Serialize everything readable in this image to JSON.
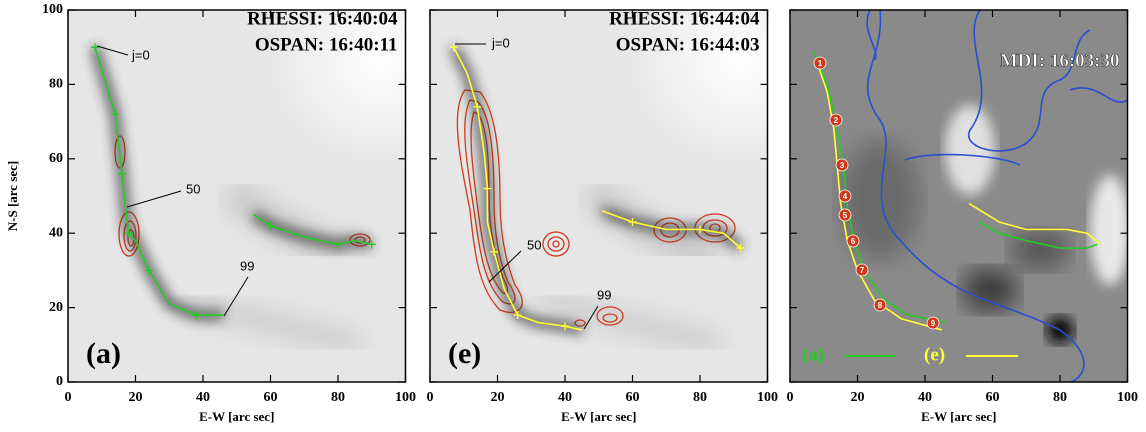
{
  "chart_data": [
    {
      "type": "line",
      "xlabel": "E-W [arc sec]",
      "ylabel": "N-S [arc sec]",
      "xlim": [
        0,
        100
      ],
      "ylim": [
        0,
        100
      ],
      "xticks": [
        0,
        20,
        40,
        60,
        80,
        100
      ],
      "yticks": [
        0,
        20,
        40,
        60,
        80,
        100
      ],
      "show_ytick_labels": true,
      "notes": [
        "RHESSI: 16:40:04",
        "OSPAN: 16:40:11"
      ],
      "panel_label": "(a)",
      "annotations": [
        "j=0",
        "50",
        "99"
      ],
      "series": [
        {
          "color": "#22cc22",
          "x": [
            8,
            11,
            14,
            15,
            16,
            17,
            18,
            20,
            24,
            30,
            38,
            46,
            null,
            55,
            60,
            70,
            80,
            85,
            90
          ],
          "values": [
            90,
            81,
            72,
            64,
            56,
            47,
            40,
            38,
            30,
            21,
            18,
            18,
            null,
            45,
            42,
            39,
            37,
            38,
            37
          ]
        }
      ]
    },
    {
      "type": "line",
      "xlabel": "E-W [arc sec]",
      "xlim": [
        0,
        100
      ],
      "ylim": [
        0,
        100
      ],
      "xticks": [
        0,
        20,
        40,
        60,
        80,
        100
      ],
      "yticks": [
        0,
        20,
        40,
        60,
        80,
        100
      ],
      "show_ytick_labels": false,
      "notes": [
        "RHESSI: 16:44:04",
        "OSPAN: 16:44:03"
      ],
      "panel_label": "(e)",
      "annotations": [
        "j=0",
        "50",
        "99"
      ],
      "series": [
        {
          "color": "#ffff33",
          "x": [
            7,
            11,
            14,
            16,
            17,
            17,
            19,
            22,
            26,
            32,
            40,
            45,
            null,
            51,
            60,
            70,
            80,
            87,
            92
          ],
          "values": [
            90,
            83,
            74,
            62,
            52,
            43,
            35,
            25,
            18,
            16,
            15,
            14,
            null,
            46,
            43,
            41,
            41,
            40,
            36
          ]
        }
      ]
    },
    {
      "type": "line",
      "xlabel": "E-W [arc sec]",
      "xlim": [
        0,
        100
      ],
      "ylim": [
        0,
        100
      ],
      "xticks": [
        0,
        20,
        40,
        60,
        80,
        100
      ],
      "yticks": [
        0,
        20,
        40,
        60,
        80,
        100
      ],
      "show_ytick_labels": false,
      "notes": [
        "MDI: 16:03:30"
      ],
      "markers": [
        "1",
        "2",
        "3",
        "4",
        "5",
        "6",
        "7",
        "8",
        "9"
      ],
      "series": [
        {
          "name": "(a)",
          "color": "#22cc22",
          "x": [
            7,
            11,
            14,
            16,
            17,
            19,
            22,
            28,
            35,
            46,
            null,
            56,
            62,
            70,
            80,
            88,
            91
          ],
          "values": [
            89,
            80,
            68,
            57,
            47,
            38,
            30,
            22,
            18,
            16,
            null,
            43,
            40,
            38,
            36,
            36,
            37
          ]
        },
        {
          "name": "(e)",
          "color": "#ffff33",
          "x": [
            8,
            11,
            13,
            14,
            15,
            17,
            20,
            25,
            33,
            45,
            null,
            53,
            62,
            70,
            82,
            88,
            92
          ],
          "values": [
            86,
            78,
            68,
            58,
            48,
            38,
            30,
            22,
            17,
            14,
            null,
            48,
            43,
            41,
            41,
            40,
            37
          ]
        }
      ]
    }
  ]
}
